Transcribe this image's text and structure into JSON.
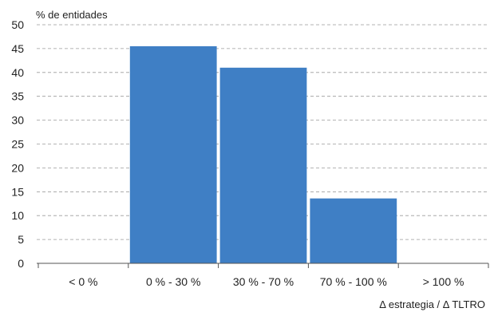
{
  "chart_data": {
    "type": "bar",
    "title": "",
    "ylabel": "% de entidades",
    "xlabel": "Δ estrategia / Δ TLTRO",
    "categories": [
      "< 0 %",
      "0 % - 30 %",
      "30 % - 70 %",
      "70 % - 100 %",
      "> 100 %"
    ],
    "values": [
      0,
      45.5,
      41,
      13.6,
      0
    ],
    "ylim": [
      0,
      50
    ],
    "yticks": [
      0,
      5,
      10,
      15,
      20,
      25,
      30,
      35,
      40,
      45,
      50
    ],
    "grid": true,
    "legend": "none",
    "colors": {
      "bar": "#3f7fc5",
      "grid": "#9a9a9a",
      "axis": "#555555",
      "text": "#222222"
    }
  }
}
